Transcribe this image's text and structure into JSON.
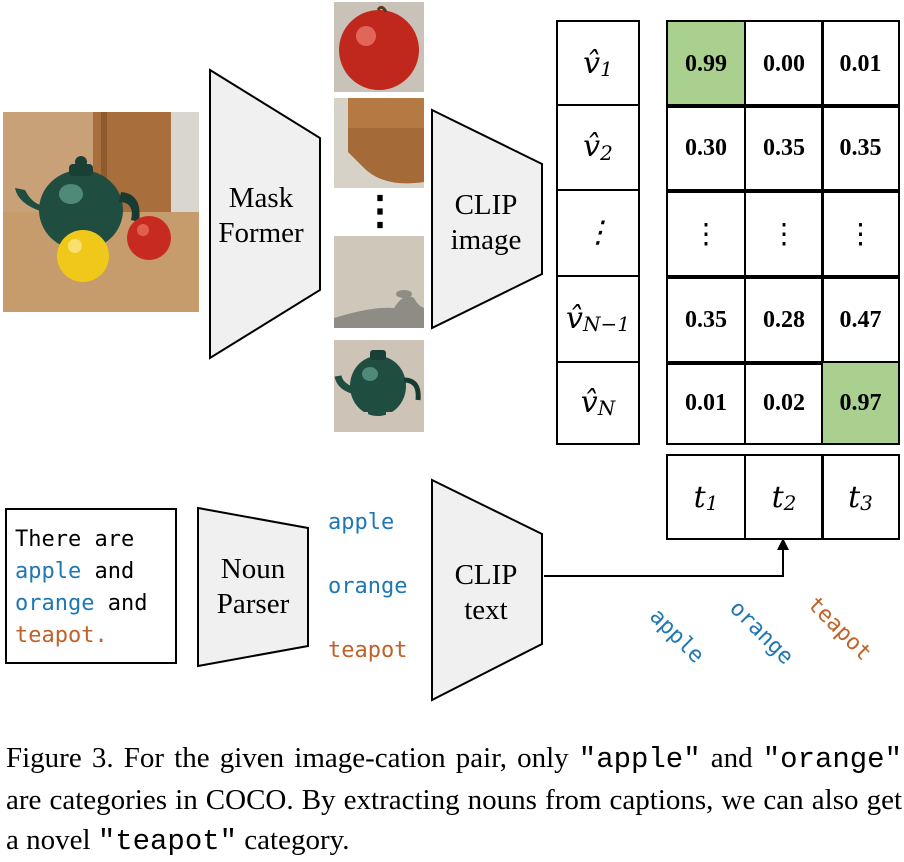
{
  "mask_former": {
    "line1": "Mask",
    "line2": "Former"
  },
  "clip_image": {
    "line1": "CLIP",
    "line2": "image"
  },
  "noun_parser": {
    "line1": "Noun",
    "line2": "Parser"
  },
  "clip_text": {
    "line1": "CLIP",
    "line2": "text"
  },
  "crops_vdots": "⋮",
  "sentence": {
    "l1": "There are",
    "l2a": "apple",
    "l2b": " and",
    "l3a": "orange",
    "l3b": " and",
    "l4": "teapot."
  },
  "nouns": [
    "apple",
    "orange",
    "teapot"
  ],
  "rotated_labels": [
    "apple",
    "orange",
    "teapot"
  ],
  "region_labels": [
    {
      "base": "v̂",
      "sub": "1"
    },
    {
      "base": "v̂",
      "sub": "2"
    },
    {
      "base": "⋮",
      "sub": ""
    },
    {
      "base": "v̂",
      "sub": "N−1"
    },
    {
      "base": "v̂",
      "sub": "N"
    }
  ],
  "matrix": [
    [
      "0.99",
      "0.00",
      "0.01"
    ],
    [
      "0.30",
      "0.35",
      "0.35"
    ],
    [
      "⋮",
      "⋮",
      "⋮"
    ],
    [
      "0.35",
      "0.28",
      "0.47"
    ],
    [
      "0.01",
      "0.02",
      "0.97"
    ]
  ],
  "highlighted": [
    [
      0,
      0
    ],
    [
      4,
      2
    ]
  ],
  "text_labels": [
    {
      "base": "t",
      "sub": "1"
    },
    {
      "base": "t",
      "sub": "2"
    },
    {
      "base": "t",
      "sub": "3"
    }
  ],
  "caption": {
    "p1": "Figure 3.  For the given image-cation pair, only ",
    "q1": "\"apple\"",
    "p2": " and ",
    "q2": "\"orange\"",
    "p3": " are categories in COCO. By extracting nouns from captions, we can also get a novel ",
    "q3": "\"teapot\"",
    "p4": " category."
  },
  "colors": {
    "blue": "#1f77b4",
    "orange": "#c0622a",
    "highlight": "#a9d08e",
    "trapezoid": "#f0f0f0"
  }
}
